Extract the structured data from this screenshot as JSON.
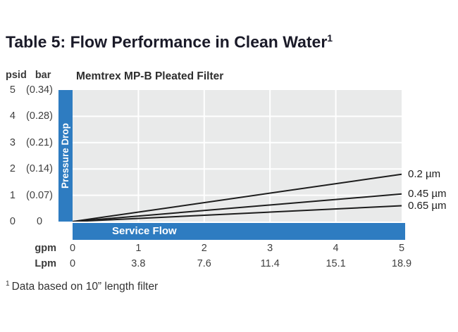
{
  "page": {
    "title": "Table 5: Flow Performance in Clean Water",
    "title_superscript": "1",
    "footnote_superscript": "1",
    "footnote": "Data based on 10” length filter"
  },
  "chart_data": {
    "type": "line",
    "title": "Memtrex MP-B Pleated Filter",
    "x_axis": {
      "label": "Service Flow",
      "range_gpm": [
        0,
        5
      ],
      "units": [
        {
          "name": "gpm",
          "ticks": [
            "0",
            "1",
            "2",
            "3",
            "4",
            "5"
          ]
        },
        {
          "name": "Lpm",
          "ticks": [
            "0",
            "3.8",
            "7.6",
            "11.4",
            "15.1",
            "18.9"
          ]
        }
      ]
    },
    "y_axis": {
      "label": "Pressure Drop",
      "range_psid": [
        0,
        5
      ],
      "units": [
        {
          "name": "psid",
          "ticks": [
            "5",
            "4",
            "3",
            "2",
            "1",
            "0"
          ]
        },
        {
          "name": "bar",
          "ticks": [
            "(0.34)",
            "(0.28)",
            "(0.21)",
            "(0.14)",
            "(0.07)",
            "0"
          ]
        }
      ]
    },
    "grid": true,
    "legend_position": "right-of-line-ends",
    "series": [
      {
        "name": "0.2 µm",
        "x": [
          0,
          5
        ],
        "y": [
          0,
          1.8
        ]
      },
      {
        "name": "0.45 µm",
        "x": [
          0,
          5
        ],
        "y": [
          0,
          1.05
        ]
      },
      {
        "name": "0.65 µm",
        "x": [
          0,
          5
        ],
        "y": [
          0,
          0.6
        ]
      }
    ],
    "colors": {
      "accent_blue": "#2e7cc1",
      "plot_background": "#e9eaea",
      "gridline": "#ffffff",
      "line": "#1c1c1c"
    }
  }
}
